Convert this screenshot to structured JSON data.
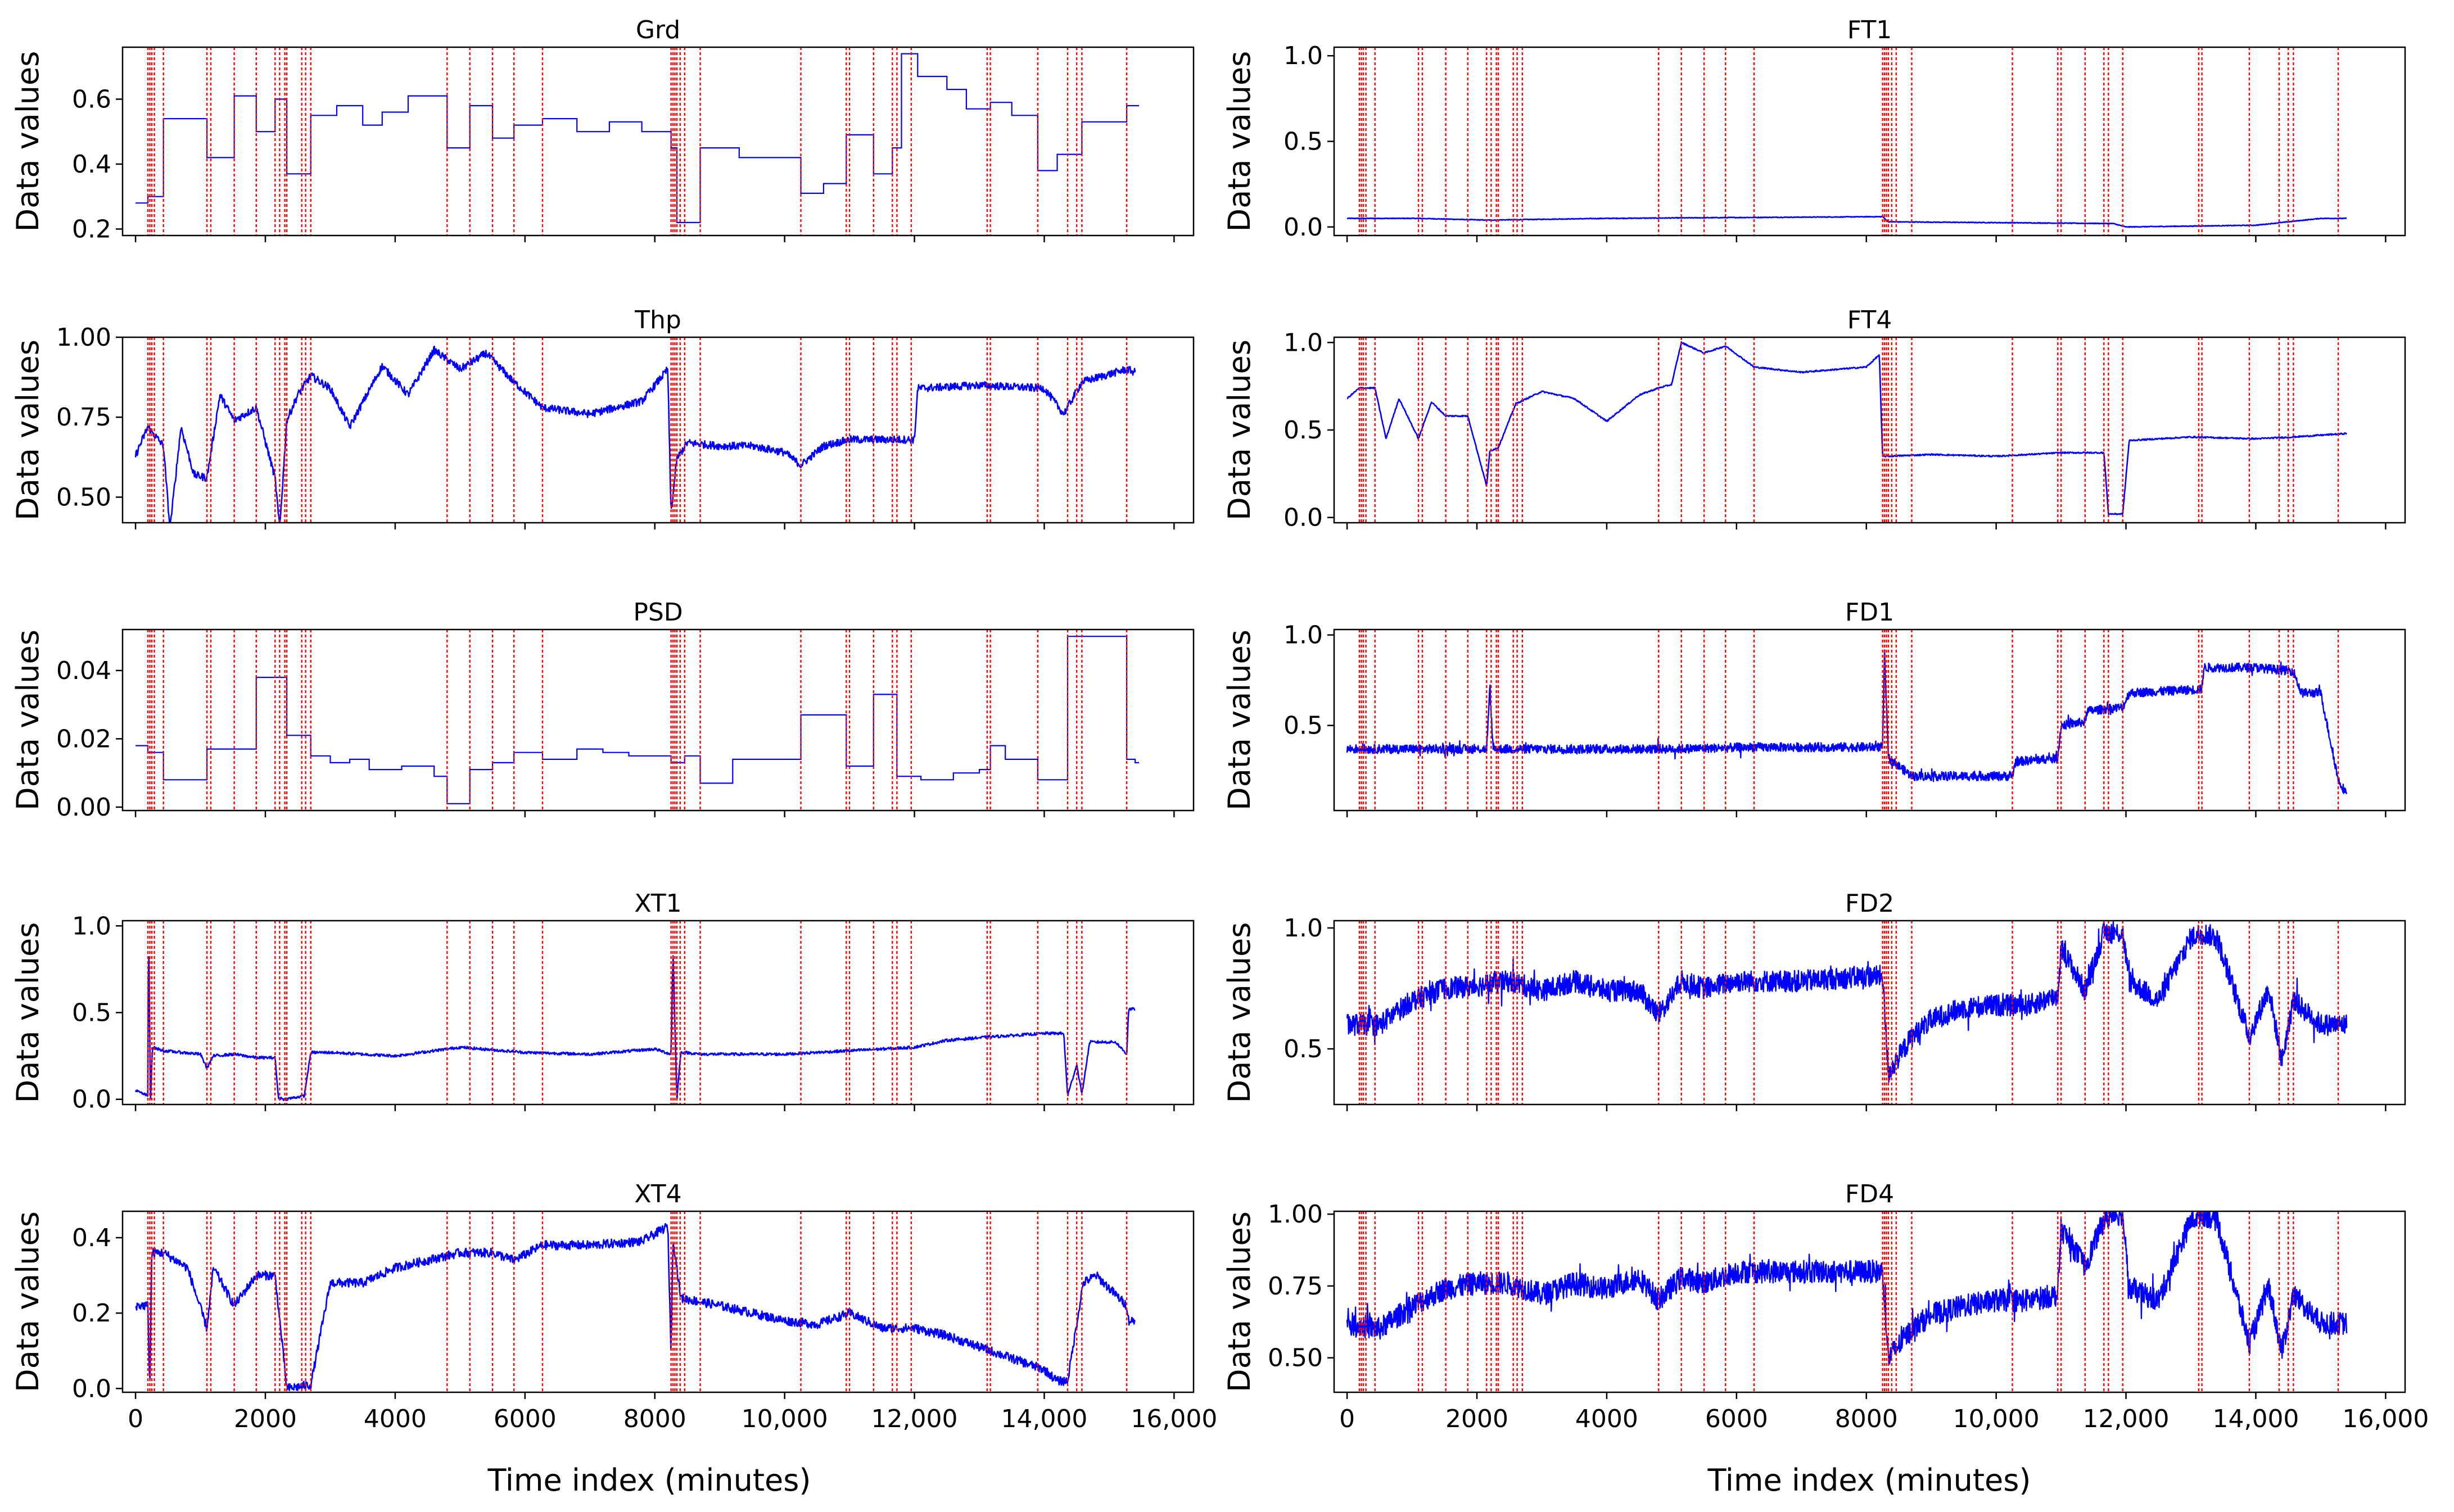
{
  "chart_data": {
    "type": "line",
    "figure_layout": "5x2 grid of line subplots sharing the x axis",
    "xlabel": "Time index (minutes)",
    "ylabel": "Data values",
    "xlim": [
      -200,
      16300
    ],
    "xticks": [
      0,
      2000,
      4000,
      6000,
      8000,
      10000,
      12000,
      14000,
      16000
    ],
    "xtick_labels": [
      "0",
      "2000",
      "4000",
      "6000",
      "8000",
      "10,000",
      "12,000",
      "14,000",
      "16,000"
    ],
    "line_color": "#0000ff",
    "changepoint_color": "#ff0000",
    "changepoint_style": "dotted vertical lines",
    "changepoints": [
      190,
      220,
      250,
      290,
      430,
      1100,
      1160,
      1520,
      1860,
      2150,
      2220,
      2300,
      2330,
      2560,
      2620,
      2700,
      4800,
      5150,
      5500,
      5830,
      6270,
      8250,
      8280,
      8310,
      8340,
      8390,
      8460,
      8700,
      10250,
      10950,
      11000,
      11370,
      11660,
      11730,
      11950,
      13120,
      13170,
      13900,
      14360,
      14500,
      14580,
      15270
    ],
    "panels": [
      {
        "title": "Grd",
        "column": "left",
        "row": 0,
        "ylim": [
          0.18,
          0.76
        ],
        "yticks": [
          0.2,
          0.4,
          0.6
        ],
        "ytick_labels": [
          "0.2",
          "0.4",
          "0.6"
        ],
        "style": "step",
        "noise": 0,
        "x": [
          0,
          190,
          430,
          1100,
          1520,
          1860,
          2150,
          2330,
          2700,
          3100,
          3500,
          3800,
          4200,
          4450,
          4800,
          5150,
          5500,
          5830,
          6270,
          6800,
          7300,
          7800,
          8250,
          8340,
          8700,
          9300,
          10250,
          10600,
          10950,
          11370,
          11660,
          11800,
          12050,
          12500,
          12800,
          13170,
          13500,
          13900,
          14200,
          14580,
          15270,
          15400
        ],
        "y": [
          0.28,
          0.3,
          0.54,
          0.42,
          0.61,
          0.5,
          0.6,
          0.37,
          0.55,
          0.58,
          0.52,
          0.56,
          0.61,
          0.61,
          0.45,
          0.58,
          0.48,
          0.52,
          0.54,
          0.5,
          0.53,
          0.5,
          0.45,
          0.22,
          0.45,
          0.42,
          0.31,
          0.34,
          0.49,
          0.37,
          0.45,
          0.74,
          0.67,
          0.63,
          0.57,
          0.59,
          0.55,
          0.38,
          0.43,
          0.53,
          0.58,
          0.58
        ]
      },
      {
        "title": "FT1",
        "column": "right",
        "row": 0,
        "ylim": [
          -0.05,
          1.05
        ],
        "yticks": [
          0.0,
          0.5,
          1.0
        ],
        "ytick_labels": [
          "0.0",
          "0.5",
          "1.0"
        ],
        "style": "line",
        "noise": 0.002,
        "x": [
          0,
          1100,
          2150,
          4000,
          6000,
          8250,
          8340,
          11800,
          12000,
          14000,
          15000,
          15400
        ],
        "y": [
          0.05,
          0.05,
          0.04,
          0.05,
          0.055,
          0.06,
          0.03,
          0.02,
          0.0,
          0.01,
          0.05,
          0.05
        ]
      },
      {
        "title": "Thp",
        "column": "left",
        "row": 1,
        "ylim": [
          0.42,
          1.0
        ],
        "yticks": [
          0.5,
          0.75,
          1.0
        ],
        "ytick_labels": [
          "0.50",
          "0.75",
          "1.00"
        ],
        "style": "line",
        "noise": 0.012,
        "x": [
          0,
          190,
          430,
          530,
          700,
          900,
          1100,
          1300,
          1520,
          1860,
          2150,
          2220,
          2330,
          2500,
          2700,
          3000,
          3300,
          3800,
          4200,
          4600,
          5000,
          5400,
          5830,
          6270,
          7000,
          7800,
          8200,
          8250,
          8340,
          8500,
          9000,
          9500,
          10000,
          10250,
          10600,
          11000,
          11500,
          12000,
          12050,
          13000,
          14000,
          14300,
          14580,
          15270,
          15400
        ],
        "y": [
          0.63,
          0.72,
          0.66,
          0.4,
          0.72,
          0.57,
          0.56,
          0.82,
          0.74,
          0.78,
          0.56,
          0.4,
          0.74,
          0.82,
          0.88,
          0.84,
          0.72,
          0.91,
          0.82,
          0.96,
          0.9,
          0.95,
          0.86,
          0.78,
          0.76,
          0.8,
          0.9,
          0.45,
          0.62,
          0.67,
          0.66,
          0.66,
          0.64,
          0.6,
          0.66,
          0.68,
          0.68,
          0.68,
          0.84,
          0.85,
          0.84,
          0.76,
          0.86,
          0.9,
          0.89
        ]
      },
      {
        "title": "FT4",
        "column": "right",
        "row": 1,
        "ylim": [
          -0.03,
          1.03
        ],
        "yticks": [
          0.0,
          0.5,
          1.0
        ],
        "ytick_labels": [
          "0.0",
          "0.5",
          "1.0"
        ],
        "style": "line",
        "noise": 0.004,
        "x": [
          0,
          190,
          430,
          600,
          800,
          1100,
          1300,
          1520,
          1860,
          2150,
          2200,
          2330,
          2600,
          3000,
          3500,
          4000,
          4500,
          4800,
          5000,
          5150,
          5500,
          5830,
          6270,
          7000,
          8000,
          8200,
          8250,
          8340,
          9000,
          10000,
          11000,
          11660,
          11730,
          11950,
          12050,
          13000,
          14000,
          14580,
          15400
        ],
        "y": [
          0.68,
          0.74,
          0.74,
          0.45,
          0.68,
          0.45,
          0.66,
          0.58,
          0.58,
          0.18,
          0.38,
          0.4,
          0.65,
          0.72,
          0.68,
          0.55,
          0.7,
          0.74,
          0.76,
          1.0,
          0.94,
          0.98,
          0.86,
          0.83,
          0.86,
          0.93,
          0.35,
          0.35,
          0.36,
          0.35,
          0.37,
          0.37,
          0.02,
          0.02,
          0.44,
          0.46,
          0.45,
          0.46,
          0.48
        ]
      },
      {
        "title": "PSD",
        "column": "left",
        "row": 2,
        "ylim": [
          -0.001,
          0.052
        ],
        "yticks": [
          0.0,
          0.02,
          0.04
        ],
        "ytick_labels": [
          "0.00",
          "0.02",
          "0.04"
        ],
        "style": "step",
        "noise": 0,
        "x": [
          0,
          190,
          430,
          1100,
          1860,
          2330,
          2700,
          3000,
          3300,
          3600,
          4100,
          4600,
          4800,
          5150,
          5500,
          5830,
          6270,
          6800,
          7200,
          7600,
          8250,
          8460,
          8700,
          9200,
          10250,
          10950,
          11370,
          11730,
          12100,
          12600,
          13000,
          13170,
          13400,
          13900,
          14360,
          14580,
          15270,
          15400
        ],
        "y": [
          0.018,
          0.016,
          0.008,
          0.017,
          0.038,
          0.021,
          0.015,
          0.013,
          0.014,
          0.011,
          0.012,
          0.009,
          0.001,
          0.011,
          0.013,
          0.016,
          0.014,
          0.017,
          0.016,
          0.015,
          0.013,
          0.015,
          0.007,
          0.014,
          0.027,
          0.012,
          0.033,
          0.009,
          0.008,
          0.01,
          0.011,
          0.018,
          0.014,
          0.008,
          0.05,
          0.05,
          0.014,
          0.013
        ]
      },
      {
        "title": "FD1",
        "column": "right",
        "row": 2,
        "ylim": [
          0.03,
          1.03
        ],
        "yticks": [
          0.5,
          1.0
        ],
        "ytick_labels": [
          "0.5",
          "1.0"
        ],
        "style": "band",
        "noise": 0.025,
        "x": [
          0,
          2150,
          2200,
          2250,
          3000,
          5000,
          6270,
          7500,
          8250,
          8280,
          8340,
          8700,
          9000,
          10250,
          10300,
          10950,
          11000,
          11370,
          11400,
          11950,
          12050,
          13170,
          13200,
          14000,
          14580,
          14700,
          15000,
          15270,
          15400
        ],
        "y": [
          0.37,
          0.37,
          0.7,
          0.37,
          0.37,
          0.37,
          0.38,
          0.38,
          0.38,
          0.9,
          0.32,
          0.22,
          0.22,
          0.22,
          0.3,
          0.32,
          0.5,
          0.52,
          0.58,
          0.6,
          0.68,
          0.7,
          0.82,
          0.82,
          0.8,
          0.68,
          0.68,
          0.2,
          0.12
        ]
      },
      {
        "title": "XT1",
        "column": "left",
        "row": 3,
        "ylim": [
          -0.03,
          1.03
        ],
        "yticks": [
          0.0,
          0.5,
          1.0
        ],
        "ytick_labels": [
          "0.0",
          "0.5",
          "1.0"
        ],
        "style": "line",
        "noise": 0.008,
        "x": [
          0,
          190,
          200,
          230,
          260,
          430,
          1000,
          1100,
          1200,
          1520,
          1860,
          2150,
          2200,
          2300,
          2600,
          2700,
          3000,
          4000,
          5000,
          6000,
          7000,
          8000,
          8250,
          8280,
          8340,
          8400,
          8460,
          8700,
          10000,
          11000,
          12000,
          12500,
          13170,
          14000,
          14300,
          14360,
          14500,
          14580,
          14700,
          15100,
          15270,
          15300,
          15400
        ],
        "y": [
          0.05,
          0.02,
          1.0,
          0.0,
          0.3,
          0.28,
          0.26,
          0.18,
          0.25,
          0.26,
          0.24,
          0.24,
          0.01,
          0.0,
          0.02,
          0.27,
          0.27,
          0.25,
          0.3,
          0.27,
          0.26,
          0.29,
          0.26,
          0.85,
          0.0,
          0.27,
          0.27,
          0.26,
          0.26,
          0.28,
          0.3,
          0.34,
          0.36,
          0.38,
          0.38,
          0.02,
          0.2,
          0.03,
          0.33,
          0.33,
          0.26,
          0.52,
          0.52
        ]
      },
      {
        "title": "FD2",
        "column": "right",
        "row": 3,
        "ylim": [
          0.27,
          1.03
        ],
        "yticks": [
          0.5,
          1.0
        ],
        "ytick_labels": [
          "0.5",
          "1.0"
        ],
        "style": "band",
        "noise": 0.045,
        "x": [
          0,
          500,
          1000,
          1500,
          2000,
          2500,
          3000,
          3500,
          4000,
          4500,
          4800,
          5150,
          5500,
          6000,
          7000,
          8000,
          8250,
          8340,
          8700,
          9000,
          9500,
          10000,
          10500,
          10950,
          11000,
          11370,
          11660,
          11800,
          11950,
          12050,
          12500,
          13000,
          13170,
          13400,
          13900,
          14200,
          14400,
          14580,
          15000,
          15400
        ],
        "y": [
          0.6,
          0.6,
          0.7,
          0.75,
          0.76,
          0.78,
          0.74,
          0.78,
          0.74,
          0.74,
          0.64,
          0.78,
          0.75,
          0.78,
          0.78,
          0.8,
          0.8,
          0.4,
          0.55,
          0.62,
          0.67,
          0.68,
          0.68,
          0.72,
          0.92,
          0.74,
          0.98,
          0.98,
          0.98,
          0.78,
          0.7,
          0.96,
          0.98,
          0.96,
          0.55,
          0.75,
          0.45,
          0.7,
          0.6,
          0.6
        ]
      },
      {
        "title": "XT4",
        "column": "left",
        "row": 4,
        "ylim": [
          -0.01,
          0.47
        ],
        "yticks": [
          0.0,
          0.2,
          0.4
        ],
        "ytick_labels": [
          "0.0",
          "0.2",
          "0.4"
        ],
        "style": "line",
        "noise": 0.012,
        "x": [
          0,
          190,
          220,
          250,
          430,
          800,
          1100,
          1200,
          1520,
          1860,
          2150,
          2330,
          2700,
          3000,
          3500,
          4000,
          4500,
          5000,
          5500,
          5830,
          6270,
          7000,
          7800,
          8200,
          8250,
          8280,
          8400,
          9000,
          9500,
          10000,
          10500,
          11000,
          11500,
          12000,
          12500,
          13000,
          13500,
          14000,
          14200,
          14360,
          14600,
          14800,
          15270,
          15300,
          15400
        ],
        "y": [
          0.22,
          0.22,
          0.0,
          0.36,
          0.36,
          0.32,
          0.16,
          0.32,
          0.22,
          0.3,
          0.3,
          0.0,
          0.01,
          0.28,
          0.28,
          0.32,
          0.34,
          0.36,
          0.36,
          0.34,
          0.38,
          0.38,
          0.39,
          0.43,
          0.1,
          0.4,
          0.24,
          0.22,
          0.2,
          0.18,
          0.17,
          0.2,
          0.16,
          0.16,
          0.14,
          0.11,
          0.08,
          0.05,
          0.02,
          0.02,
          0.28,
          0.3,
          0.22,
          0.18,
          0.18
        ]
      },
      {
        "title": "FD4",
        "column": "right",
        "row": 4,
        "ylim": [
          0.38,
          1.01
        ],
        "yticks": [
          0.5,
          0.75,
          1.0
        ],
        "ytick_labels": [
          "0.50",
          "0.75",
          "1.00"
        ],
        "style": "band",
        "noise": 0.04,
        "x": [
          0,
          500,
          1000,
          1500,
          2000,
          2500,
          3000,
          3500,
          4000,
          4500,
          4800,
          5150,
          5500,
          6000,
          7000,
          8000,
          8250,
          8340,
          8700,
          9000,
          9500,
          10000,
          10500,
          10950,
          11000,
          11370,
          11660,
          11800,
          11950,
          12050,
          12500,
          13000,
          13170,
          13400,
          13900,
          14200,
          14400,
          14580,
          15000,
          15400
        ],
        "y": [
          0.62,
          0.6,
          0.68,
          0.74,
          0.76,
          0.76,
          0.72,
          0.76,
          0.74,
          0.78,
          0.7,
          0.78,
          0.76,
          0.8,
          0.8,
          0.8,
          0.8,
          0.5,
          0.6,
          0.65,
          0.68,
          0.7,
          0.7,
          0.72,
          0.95,
          0.82,
          0.98,
          1.0,
          1.0,
          0.74,
          0.7,
          0.98,
          1.0,
          0.98,
          0.55,
          0.75,
          0.52,
          0.72,
          0.62,
          0.62
        ]
      }
    ]
  }
}
